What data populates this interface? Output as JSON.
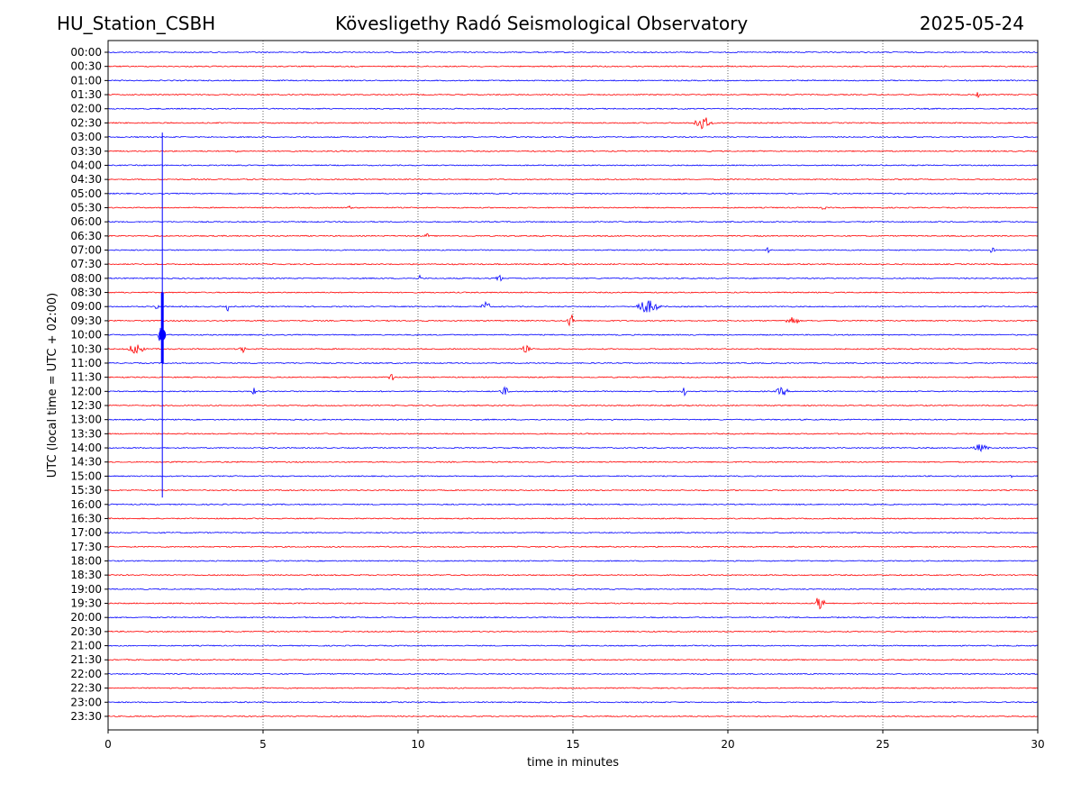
{
  "header": {
    "station": "HU_Station_CSBH",
    "title": "Kövesligethy Radó Seismological Observatory",
    "date": "2025-05-24"
  },
  "chart_data": {
    "type": "line",
    "title": "Kövesligethy Radó Seismological Observatory",
    "xlabel": "time in minutes",
    "ylabel": "UTC (local time = UTC + 02:00)",
    "xlim": [
      0,
      30
    ],
    "x_ticks": [
      0,
      5,
      10,
      15,
      20,
      25,
      30
    ],
    "grid": "vertical dotted at major x ticks",
    "colors": {
      "even_rows": "#0000ff",
      "odd_rows": "#ff0000"
    },
    "rows": [
      "00:00",
      "00:30",
      "01:00",
      "01:30",
      "02:00",
      "02:30",
      "03:00",
      "03:30",
      "04:00",
      "04:30",
      "05:00",
      "05:30",
      "06:00",
      "06:30",
      "07:00",
      "07:30",
      "08:00",
      "08:30",
      "09:00",
      "09:30",
      "10:00",
      "10:30",
      "11:00",
      "11:30",
      "12:00",
      "12:30",
      "13:00",
      "13:30",
      "14:00",
      "14:30",
      "15:00",
      "15:30",
      "16:00",
      "16:30",
      "17:00",
      "17:30",
      "18:00",
      "18:30",
      "19:00",
      "19:30",
      "20:00",
      "20:30",
      "21:00",
      "21:30",
      "22:00",
      "22:30",
      "23:00",
      "23:30"
    ],
    "events": [
      {
        "row": "01:30",
        "t": 28.0,
        "dur": 0.2,
        "amp": 0.25
      },
      {
        "row": "02:30",
        "t": 18.8,
        "dur": 1.2,
        "amp": 0.45
      },
      {
        "row": "03:30",
        "t": 4.1,
        "dur": 0.3,
        "amp": 0.2
      },
      {
        "row": "05:30",
        "t": 7.7,
        "dur": 0.3,
        "amp": 0.15
      },
      {
        "row": "05:30",
        "t": 23.0,
        "dur": 0.3,
        "amp": 0.15
      },
      {
        "row": "06:30",
        "t": 10.2,
        "dur": 0.3,
        "amp": 0.2
      },
      {
        "row": "07:00",
        "t": 21.2,
        "dur": 0.3,
        "amp": 0.2
      },
      {
        "row": "07:00",
        "t": 28.4,
        "dur": 0.4,
        "amp": 0.2
      },
      {
        "row": "08:00",
        "t": 10.0,
        "dur": 0.2,
        "amp": 0.3
      },
      {
        "row": "08:00",
        "t": 12.5,
        "dur": 0.4,
        "amp": 0.3
      },
      {
        "row": "09:00",
        "t": 1.5,
        "dur": 0.3,
        "amp": 0.3
      },
      {
        "row": "09:00",
        "t": 3.8,
        "dur": 0.2,
        "amp": 0.3
      },
      {
        "row": "09:00",
        "t": 12.0,
        "dur": 0.6,
        "amp": 0.35
      },
      {
        "row": "09:00",
        "t": 16.9,
        "dur": 1.6,
        "amp": 0.45
      },
      {
        "row": "09:30",
        "t": 14.8,
        "dur": 0.4,
        "amp": 0.5
      },
      {
        "row": "09:30",
        "t": 21.8,
        "dur": 0.9,
        "amp": 0.3
      },
      {
        "row": "10:00",
        "t": 1.6,
        "dur": 0.3,
        "amp": 0.6
      },
      {
        "row": "10:30",
        "t": 0.6,
        "dur": 1.0,
        "amp": 0.4
      },
      {
        "row": "10:30",
        "t": 4.2,
        "dur": 0.4,
        "amp": 0.3
      },
      {
        "row": "10:30",
        "t": 13.3,
        "dur": 0.6,
        "amp": 0.25
      },
      {
        "row": "11:30",
        "t": 9.0,
        "dur": 0.4,
        "amp": 0.3
      },
      {
        "row": "12:00",
        "t": 4.6,
        "dur": 0.3,
        "amp": 0.3
      },
      {
        "row": "12:00",
        "t": 12.6,
        "dur": 0.6,
        "amp": 0.3
      },
      {
        "row": "12:00",
        "t": 18.5,
        "dur": 0.3,
        "amp": 0.3
      },
      {
        "row": "12:00",
        "t": 21.5,
        "dur": 0.8,
        "amp": 0.3
      },
      {
        "row": "14:00",
        "t": 27.8,
        "dur": 1.1,
        "amp": 0.25
      },
      {
        "row": "15:00",
        "t": 29.0,
        "dur": 0.3,
        "amp": 0.2
      },
      {
        "row": "19:30",
        "t": 22.8,
        "dur": 0.6,
        "amp": 0.6
      }
    ],
    "spike": {
      "t": 1.75,
      "from_row": "03:00",
      "to_row": "15:30"
    }
  }
}
